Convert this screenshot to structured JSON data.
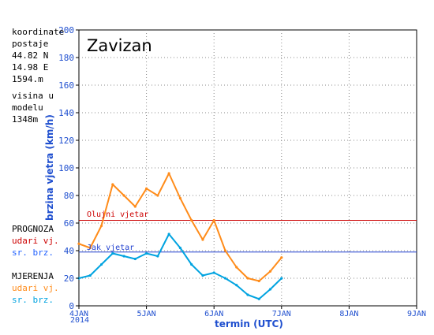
{
  "station": {
    "coord_label": "koordinate",
    "postaje_label": "postaje",
    "lat": "44.82 N",
    "lon": "14.98 E",
    "elevation": "1594.m",
    "model_label_1": "visina u",
    "model_label_2": "modelu",
    "model_height": "1348m"
  },
  "legend": {
    "forecast_title": "PROGNOZA",
    "forecast_gust": "udari vj.",
    "forecast_mean": "sr. brz.",
    "obs_title": "MJERENJA",
    "obs_gust": "udari vj.",
    "obs_mean": "sr. brz."
  },
  "chart_data": {
    "type": "line",
    "title": "Zavizan",
    "ylabel": "brzina vjetra (km/h)",
    "xlabel": "termin (UTC)",
    "ylim": [
      0,
      200
    ],
    "yticks": [
      0,
      20,
      40,
      60,
      80,
      100,
      120,
      140,
      160,
      180,
      200
    ],
    "xlim_days": [
      4,
      9
    ],
    "xticks": [
      "4JAN",
      "5JAN",
      "6JAN",
      "7JAN",
      "8JAN",
      "9JAN"
    ],
    "year_label": "2014",
    "grid": true,
    "reference_lines": [
      {
        "name": "Olujni vjetar",
        "value": 62,
        "color": "#cc0000"
      },
      {
        "name": "Jak vjetar",
        "value": 39,
        "color": "#1f3fcf"
      }
    ],
    "series": [
      {
        "name": "udari vj.",
        "color": "#ff8c1a",
        "x": [
          "4JAN 00",
          "4JAN 04",
          "4JAN 08",
          "4JAN 12",
          "4JAN 16",
          "4JAN 20",
          "5JAN 00",
          "5JAN 04",
          "5JAN 08",
          "5JAN 12",
          "5JAN 16",
          "5JAN 20",
          "6JAN 00",
          "6JAN 04",
          "6JAN 08",
          "6JAN 12",
          "6JAN 16",
          "6JAN 20",
          "7JAN 00"
        ],
        "values": [
          45,
          42,
          58,
          88,
          80,
          72,
          85,
          80,
          96,
          78,
          62,
          48,
          62,
          40,
          28,
          20,
          18,
          25,
          35
        ]
      },
      {
        "name": "sr. brz.",
        "color": "#00a3e0",
        "x": [
          "4JAN 00",
          "4JAN 04",
          "4JAN 08",
          "4JAN 12",
          "4JAN 16",
          "4JAN 20",
          "5JAN 00",
          "5JAN 04",
          "5JAN 08",
          "5JAN 12",
          "5JAN 16",
          "5JAN 20",
          "6JAN 00",
          "6JAN 04",
          "6JAN 08",
          "6JAN 12",
          "6JAN 16",
          "6JAN 20",
          "7JAN 00"
        ],
        "values": [
          20,
          22,
          30,
          38,
          36,
          34,
          38,
          36,
          52,
          42,
          30,
          22,
          24,
          20,
          15,
          8,
          5,
          12,
          20
        ]
      }
    ]
  }
}
